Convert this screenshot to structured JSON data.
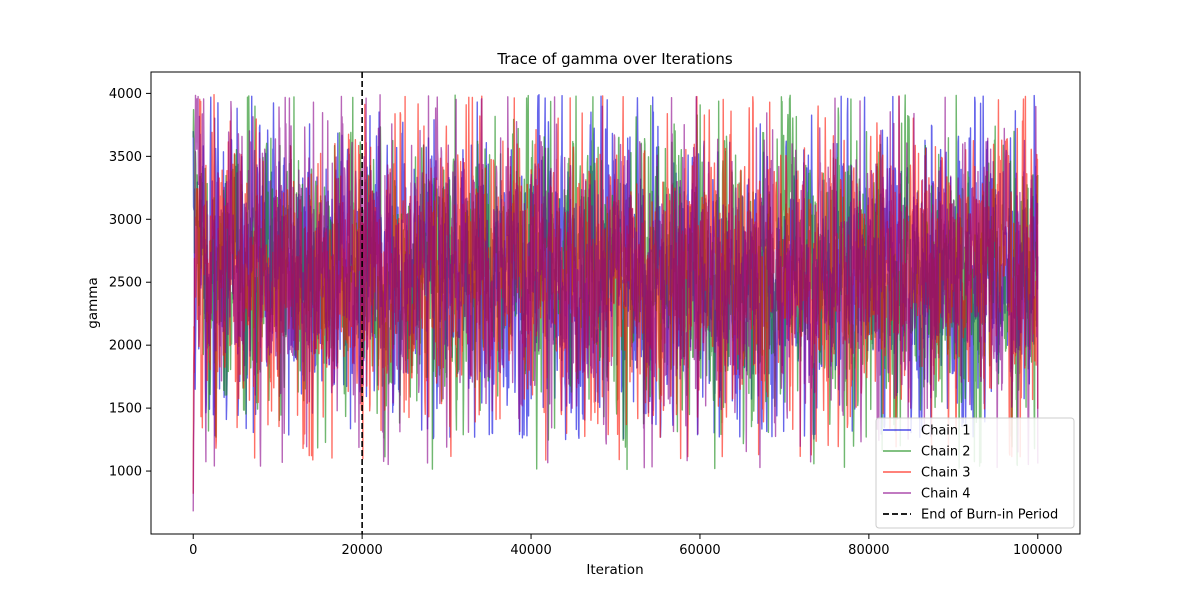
{
  "chart_data": {
    "type": "line",
    "title": "Trace of gamma over Iterations",
    "xlabel": "Iteration",
    "ylabel": "gamma",
    "xlim": [
      -5000,
      105000
    ],
    "ylim": [
      500,
      4170
    ],
    "xticks": [
      0,
      20000,
      40000,
      60000,
      80000,
      100000
    ],
    "yticks": [
      1000,
      1500,
      2000,
      2500,
      3000,
      3500,
      4000
    ],
    "grid": false,
    "legend_position": "lower-right",
    "iterations": [
      0,
      100000
    ],
    "burn_in": {
      "name": "End of Burn-in Period",
      "x": 20000,
      "color": "#000000",
      "style": "dashed"
    },
    "series": [
      {
        "name": "Chain 1",
        "color": "#0000dd",
        "opacity": 0.6,
        "start": 3700,
        "mean": 2550,
        "sd": 560,
        "low": 1250,
        "high": 3990
      },
      {
        "name": "Chain 2",
        "color": "#118811",
        "opacity": 0.6,
        "start": 3650,
        "mean": 2560,
        "sd": 560,
        "low": 1000,
        "high": 3990
      },
      {
        "name": "Chain 3",
        "color": "#ff1100",
        "opacity": 0.6,
        "start": 820,
        "mean": 2540,
        "sd": 570,
        "low": 1080,
        "high": 3990
      },
      {
        "name": "Chain 4",
        "color": "#880088",
        "opacity": 0.6,
        "start": 680,
        "mean": 2520,
        "sd": 550,
        "low": 1020,
        "high": 3990
      }
    ]
  }
}
